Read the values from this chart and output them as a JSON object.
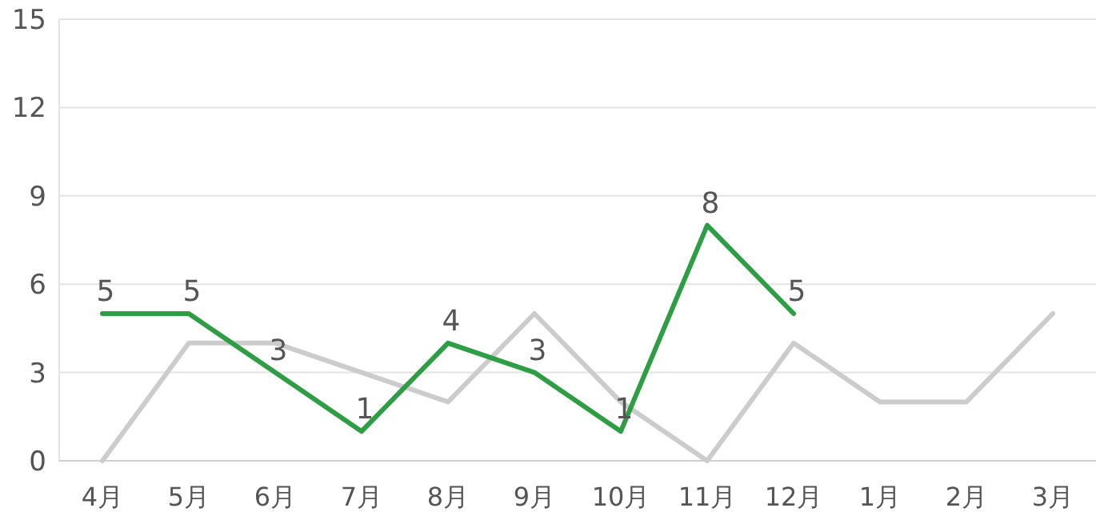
{
  "chart_data": {
    "type": "line",
    "categories": [
      "4月",
      "5月",
      "6月",
      "7月",
      "8月",
      "9月",
      "10月",
      "11月",
      "12月",
      "1月",
      "2月",
      "3月"
    ],
    "series": [
      {
        "color": "#cccccc",
        "values": [
          0,
          4,
          4,
          3,
          2,
          5,
          2,
          0,
          4,
          2,
          2,
          5
        ]
      },
      {
        "color": "#2e9e44",
        "values": [
          5,
          5,
          3,
          1,
          4,
          3,
          1,
          8,
          5,
          null,
          null,
          null
        ],
        "value_labels": [
          "5",
          "5",
          "3",
          "1",
          "4",
          "3",
          "1",
          "8",
          "5",
          null,
          null,
          null
        ]
      }
    ],
    "ylim": [
      0,
      15
    ],
    "yticks": [
      0,
      3,
      6,
      9,
      12,
      15
    ],
    "grid": "y"
  }
}
